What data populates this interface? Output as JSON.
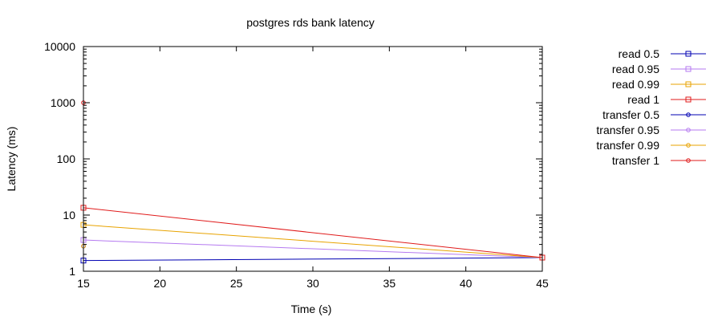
{
  "chart_data": {
    "type": "line",
    "title": "postgres rds bank latency",
    "xlabel": "Time (s)",
    "ylabel": "Latency (ms)",
    "xlim": [
      15,
      45
    ],
    "ylim": [
      1,
      10000
    ],
    "yscale": "log",
    "x_ticks": [
      15,
      20,
      25,
      30,
      35,
      40,
      45
    ],
    "x_tick_labels": [
      "15",
      "20",
      "25",
      "30",
      "35",
      "40",
      "45"
    ],
    "y_ticks": [
      1,
      10,
      100,
      1000,
      10000
    ],
    "y_tick_labels": [
      "1",
      "10",
      "100",
      "1000",
      "10000"
    ],
    "grid": false,
    "legend_position": "right",
    "series": [
      {
        "name": "read 0.5",
        "color": "#0000b3",
        "marker": "square",
        "points": [
          [
            15,
            1.55
          ],
          [
            45,
            1.75
          ]
        ]
      },
      {
        "name": "read 0.95",
        "color": "#b57af0",
        "marker": "square",
        "points": [
          [
            15,
            3.6
          ],
          [
            45,
            1.75
          ]
        ]
      },
      {
        "name": "read 0.99",
        "color": "#e8a300",
        "marker": "square",
        "points": [
          [
            15,
            6.7
          ],
          [
            45,
            1.75
          ]
        ]
      },
      {
        "name": "read 1",
        "color": "#e01b1b",
        "marker": "square",
        "points": [
          [
            15,
            13.5
          ],
          [
            45,
            1.75
          ]
        ]
      },
      {
        "name": "transfer 0.5",
        "color": "#0000b3",
        "marker": "circle",
        "points": [
          [
            15,
            2.8
          ]
        ]
      },
      {
        "name": "transfer 0.95",
        "color": "#b57af0",
        "marker": "circle",
        "points": [
          [
            15,
            2.8
          ]
        ]
      },
      {
        "name": "transfer 0.99",
        "color": "#e8a300",
        "marker": "circle",
        "points": [
          [
            15,
            2.8
          ]
        ]
      },
      {
        "name": "transfer 1",
        "color": "#e01b1b",
        "marker": "circle",
        "points": [
          [
            15,
            1000
          ]
        ]
      }
    ]
  }
}
